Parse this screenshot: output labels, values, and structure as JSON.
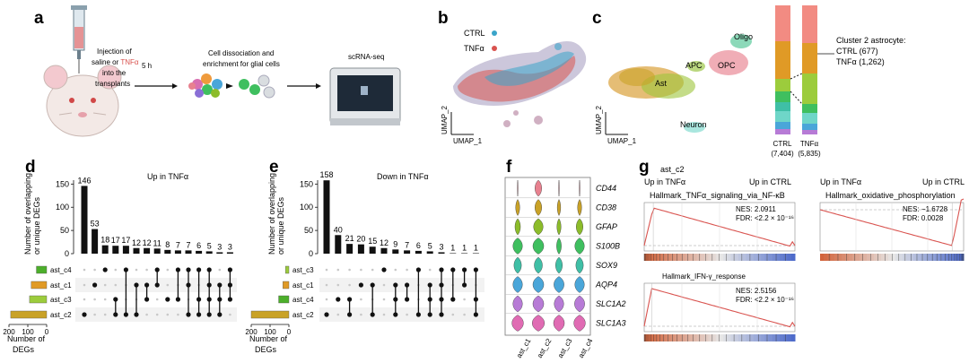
{
  "panel_labels": [
    "a",
    "b",
    "c",
    "d",
    "e",
    "f",
    "g"
  ],
  "a": {
    "injection_pre": "Injection of",
    "saline_or": "saline or ",
    "tnf": "TNFα",
    "into_the": "into the",
    "transplants": "transplants",
    "time": "5 h",
    "dissoc_1": "Cell dissociation and",
    "dissoc_2": "enrichment for glial cells",
    "seq": "scRNA-seq"
  },
  "b": {
    "legend": [
      "CTRL",
      "TNFα"
    ],
    "colors": {
      "ctrl": "#3aa4c9",
      "tnf": "#d9534f"
    },
    "xlabel": "UMAP_1",
    "ylabel": "UMAP_2"
  },
  "c": {
    "clusters": [
      "Oligo",
      "APC",
      "OPC",
      "Ast",
      "Neuron"
    ],
    "xlabel": "UMAP_1",
    "ylabel": "UMAP_2",
    "callout": [
      "Cluster 2 astrocyte:",
      "CTRL (677)",
      "TNFα (1,262)"
    ],
    "bar_labels": [
      {
        "name": "CTRL",
        "count": "(7,404)"
      },
      {
        "name": "TNFα",
        "count": "(5,835)"
      }
    ]
  },
  "d": {
    "title": "Up in TNFα",
    "ylabel_1": "Number of overlapping",
    "ylabel_2": "or unique DEGs",
    "sets": [
      "ast_c4",
      "ast_c1",
      "ast_c3",
      "ast_c2"
    ],
    "set_colors": [
      "#4caf2b",
      "#e09a26",
      "#9ccc3c",
      "#c9a227"
    ],
    "set_size_label_1": "Number of",
    "set_size_label_2": "DEGs",
    "set_size_ticks": [
      "200",
      "100",
      "0"
    ]
  },
  "e": {
    "title": "Down in TNFα",
    "ylabel_1": "Number of overlapping",
    "ylabel_2": "or unique DEGs",
    "sets": [
      "ast_c3",
      "ast_c1",
      "ast_c4",
      "ast_c2"
    ],
    "set_colors": [
      "#9ccc3c",
      "#e09a26",
      "#4caf2b",
      "#c9a227"
    ],
    "set_size_label_1": "Number of",
    "set_size_label_2": "DEGs",
    "set_size_ticks": [
      "200",
      "100",
      "0"
    ]
  },
  "f": {
    "genes": [
      "CD44",
      "CD38",
      "GFAP",
      "S100B",
      "SOX9",
      "AQP4",
      "SLC1A2",
      "SLC1A3"
    ],
    "groups": [
      "ast_c1",
      "ast_c2",
      "ast_c3",
      "ast_c4"
    ],
    "gene_colors": [
      "#e8818f",
      "#c9a227",
      "#8cbc2a",
      "#3fbf5f",
      "#3fbfa6",
      "#4aa6d9",
      "#b77bd6",
      "#e06bb3"
    ]
  },
  "g": {
    "cluster": "ast_c2",
    "up_tnf": "Up in TNFα",
    "up_ctrl": "Up in CTRL",
    "plots": [
      {
        "title": "Hallmark_TNFα_signaling_via_NF-κB",
        "nes": "NES: 2.0911",
        "fdr": "FDR: <2.2 × 10⁻¹⁶"
      },
      {
        "title": "Hallmark_oxidative_phosphorylation",
        "nes": "NES: −1.6728",
        "fdr": "FDR: 0.0028"
      },
      {
        "title": "Hallmark_IFN-γ_response",
        "nes": "NES: 2.5156",
        "fdr": "FDR: <2.2 × 10⁻¹⁶"
      }
    ]
  },
  "chart_data": [
    {
      "type": "bar",
      "panel": "d",
      "title": "Up in TNFα",
      "ylabel": "Number of overlapping or unique DEGs",
      "ylim": [
        0,
        170
      ],
      "yticks": [
        0,
        50,
        100,
        150
      ],
      "values": [
        146,
        53,
        18,
        17,
        17,
        12,
        12,
        11,
        8,
        7,
        7,
        6,
        5,
        3,
        3
      ],
      "membership": [
        [
          4
        ],
        [
          2
        ],
        [
          1
        ],
        [
          3,
          4
        ],
        [
          1,
          4
        ],
        [
          2,
          4
        ],
        [
          2,
          3
        ],
        [
          1,
          2
        ],
        [
          3
        ],
        [
          1,
          3
        ],
        [
          1,
          2,
          4
        ],
        [
          1,
          3,
          4
        ],
        [
          1,
          2,
          3,
          4
        ],
        [
          2,
          3,
          4
        ],
        [
          1,
          2,
          3
        ]
      ],
      "set_sizes": [
        60,
        90,
        100,
        210
      ]
    },
    {
      "type": "bar",
      "panel": "e",
      "title": "Down in TNFα",
      "ylabel": "Number of overlapping or unique DEGs",
      "ylim": [
        0,
        170
      ],
      "yticks": [
        0,
        50,
        100,
        150
      ],
      "values": [
        158,
        40,
        21,
        20,
        15,
        12,
        9,
        7,
        6,
        5,
        3,
        1,
        1,
        1
      ],
      "membership": [
        [
          4
        ],
        [
          3
        ],
        [
          3,
          4
        ],
        [
          2
        ],
        [
          2,
          4
        ],
        [
          1
        ],
        [
          3,
          4,
          2
        ],
        [
          2,
          3
        ],
        [
          1,
          4
        ],
        [
          2,
          3,
          4
        ],
        [
          1,
          2,
          3,
          4
        ],
        [
          1,
          3
        ],
        [
          1,
          2
        ],
        [
          1,
          3,
          4
        ]
      ],
      "set_sizes": [
        20,
        35,
        60,
        220
      ]
    }
  ]
}
